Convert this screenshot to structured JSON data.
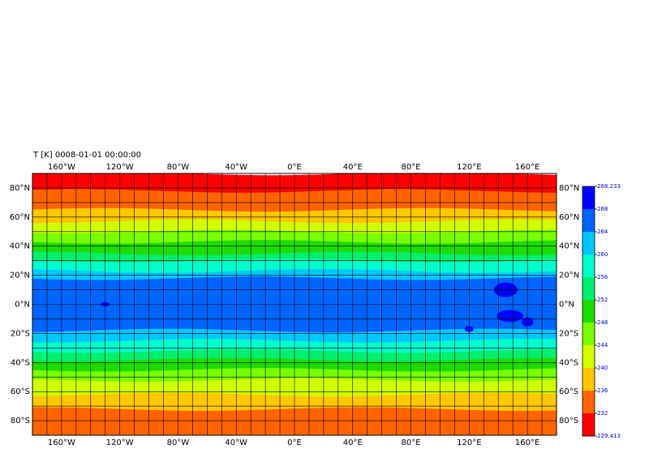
{
  "header": {
    "title": "T [K]  0008-01-01 00:00:00"
  },
  "map": {
    "lon_labels": [
      "160°W",
      "120°W",
      "80°W",
      "40°W",
      "0°E",
      "40°E",
      "80°E",
      "120°E",
      "160°E"
    ],
    "lat_labels": [
      "80°N",
      "60°N",
      "40°N",
      "20°N",
      "0°N",
      "20°S",
      "40°S",
      "60°S",
      "80°S"
    ]
  },
  "colorbar": {
    "levels": [
      229.413,
      232,
      236,
      240,
      244,
      248,
      252,
      256,
      260,
      264,
      268,
      268.233
    ],
    "colors": [
      "#ff0000",
      "#ff6400",
      "#ffc800",
      "#d2ff00",
      "#78ff00",
      "#1edc00",
      "#00f06e",
      "#00ffcc",
      "#00c8ff",
      "#0064ff",
      "#0000ff"
    ]
  }
}
